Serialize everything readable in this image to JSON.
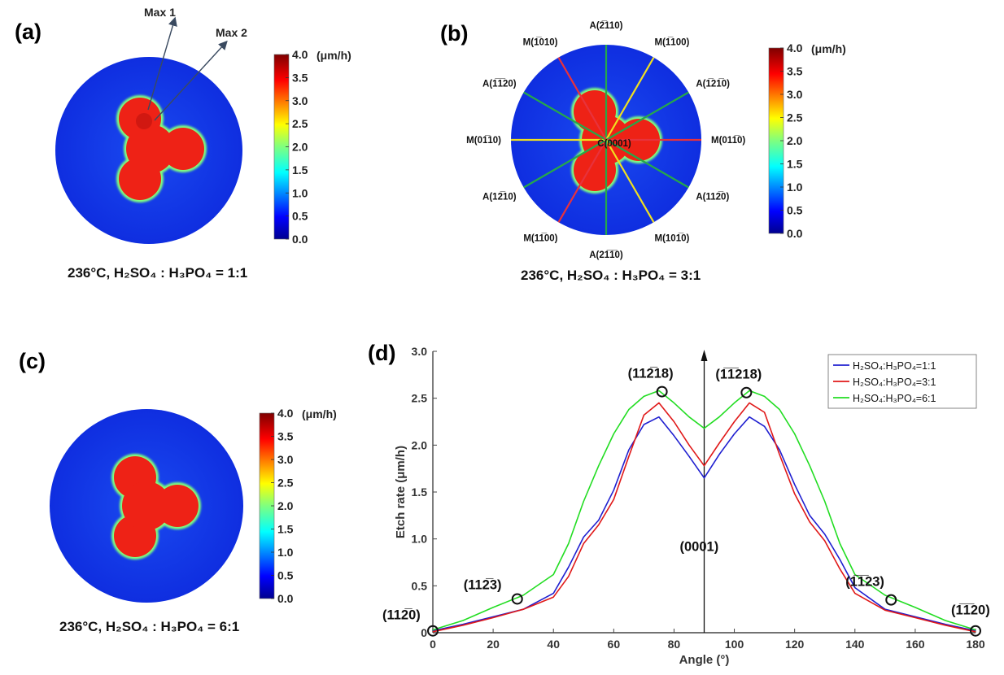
{
  "panels": {
    "a": {
      "label": "(a)",
      "caption": "236°C, H₂SO₄ : H₃PO₄ = 1:1",
      "annotations": [
        "Max 1",
        "Max 2"
      ]
    },
    "b": {
      "label": "(b)",
      "caption": "236°C, H₂SO₄ : H₃PO₄ = 3:1",
      "center_label": "C(0001)",
      "direction_labels": [
        "A(2̅110)",
        "M(1̅100)",
        "A(1̅21̅0)",
        "M(011̅0)",
        "A(112̅0)",
        "M(101̅0)",
        "A(21̅1̅0)",
        "M(11̅00)",
        "A(12̅10)",
        "M(01̅10)",
        "A(1̅1̅20)",
        "M(1̅010)"
      ]
    },
    "c": {
      "label": "(c)",
      "caption": "236°C, H₂SO₄ : H₃PO₄ = 6:1"
    },
    "d": {
      "label": "(d)"
    }
  },
  "colorbar": {
    "unit": "(μm/h)",
    "ticks": [
      "4.0",
      "3.5",
      "3.0",
      "2.5",
      "2.0",
      "1.5",
      "1.0",
      "0.5",
      "0.0"
    ],
    "min": 0.0,
    "max": 4.0
  },
  "colors": {
    "series1": "#1f1fd0",
    "series2": "#e01818",
    "series3": "#22dd22",
    "map_background": "#1133e6",
    "map_lobe": "#d41a10",
    "line_m_red": "#e8323c",
    "line_m_yellow": "#f0e020",
    "line_a_green": "#25a84a"
  },
  "chart_data": {
    "type": "line",
    "title": "",
    "xlabel": "Angle (°)",
    "ylabel": "Etch rate (μm/h)",
    "xlim": [
      0,
      180
    ],
    "ylim": [
      0,
      3.0
    ],
    "xticks": [
      0,
      20,
      40,
      60,
      80,
      100,
      120,
      140,
      160,
      180
    ],
    "yticks": [
      0,
      0.5,
      1.0,
      1.5,
      2.0,
      2.5,
      3.0
    ],
    "ytick_labels": [
      "0",
      "0.5",
      "1.0",
      "1.5",
      "2.0",
      "2.5",
      "3.0"
    ],
    "legend": {
      "position": "top-right",
      "entries": [
        "H₂SO₄:H₃PO₄=1:1",
        "H₂SO₄:H₃PO₄=3:1",
        "H₂SO₄:H₃PO₄=6:1"
      ]
    },
    "x": [
      0,
      10,
      20,
      30,
      40,
      45,
      50,
      55,
      60,
      65,
      70,
      75,
      80,
      85,
      90,
      95,
      100,
      105,
      110,
      115,
      120,
      125,
      130,
      135,
      140,
      150,
      160,
      170,
      180
    ],
    "series": [
      {
        "name": "H₂SO₄:H₃PO₄=1:1",
        "color": "#1f1fd0",
        "values": [
          0.02,
          0.09,
          0.17,
          0.25,
          0.42,
          0.7,
          1.02,
          1.2,
          1.52,
          1.95,
          2.22,
          2.3,
          2.1,
          1.88,
          1.65,
          1.9,
          2.12,
          2.3,
          2.2,
          1.95,
          1.58,
          1.25,
          1.05,
          0.78,
          0.48,
          0.25,
          0.17,
          0.09,
          0.02
        ]
      },
      {
        "name": "H₂SO₄:H₃PO₄=3:1",
        "color": "#e01818",
        "values": [
          0.01,
          0.08,
          0.16,
          0.25,
          0.38,
          0.6,
          0.95,
          1.15,
          1.42,
          1.88,
          2.32,
          2.45,
          2.25,
          2.0,
          1.78,
          2.02,
          2.25,
          2.45,
          2.35,
          1.9,
          1.48,
          1.18,
          0.98,
          0.68,
          0.42,
          0.24,
          0.16,
          0.08,
          0.01
        ]
      },
      {
        "name": "H₂SO₄:H₃PO₄=6:1",
        "color": "#22dd22",
        "values": [
          0.03,
          0.13,
          0.27,
          0.4,
          0.62,
          0.95,
          1.4,
          1.78,
          2.12,
          2.38,
          2.52,
          2.58,
          2.45,
          2.3,
          2.18,
          2.3,
          2.45,
          2.58,
          2.52,
          2.38,
          2.12,
          1.78,
          1.4,
          0.95,
          0.62,
          0.4,
          0.27,
          0.13,
          0.03
        ]
      }
    ],
    "markers": [
      {
        "label": "(112̅0)",
        "x": 0,
        "y": 0.02
      },
      {
        "label": "(112̅3)",
        "x": 28,
        "y": 0.36
      },
      {
        "label": "(112̅18)",
        "x": 76,
        "y": 2.57
      },
      {
        "label": "(0001)",
        "x": 90,
        "y": 1.65
      },
      {
        "label": "(1̅1̅218)",
        "x": 104,
        "y": 2.56
      },
      {
        "label": "(1̅1̅23)",
        "x": 152,
        "y": 0.35
      },
      {
        "label": "(1̅1̅20)",
        "x": 180,
        "y": 0.02
      }
    ]
  }
}
